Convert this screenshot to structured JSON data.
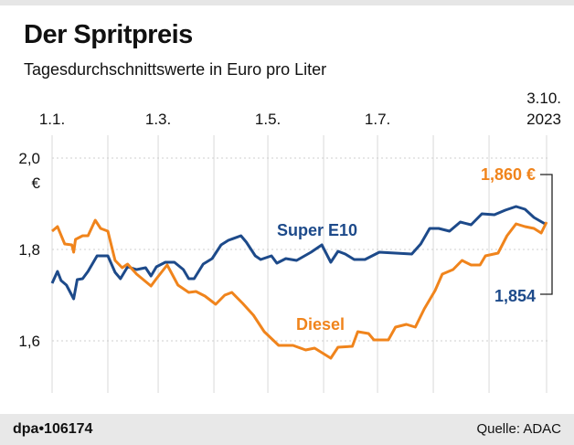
{
  "header": {
    "title": "Der Spritpreis",
    "subtitle": "Tagesdurchschnittswerte in Euro pro Liter"
  },
  "footer": {
    "credit": "dpa•106174",
    "source": "Quelle: ADAC"
  },
  "chart_data": {
    "type": "line",
    "title": "Der Spritpreis",
    "subtitle": "Tagesdurchschnittswerte in Euro pro Liter",
    "xlim": [
      "2023-01-01",
      "2023-10-03"
    ],
    "ylim": [
      1.49,
      2.05
    ],
    "x_ticks": [
      {
        "date": "2023-01-01",
        "label": "1.1."
      },
      {
        "date": "2023-03-01",
        "label": "1.3."
      },
      {
        "date": "2023-05-01",
        "label": "1.5."
      },
      {
        "date": "2023-07-01",
        "label": "1.7."
      },
      {
        "date": "2023-10-03",
        "label": "3.10.",
        "label2": "2023"
      }
    ],
    "x_gridlines": [
      "2023-01-01",
      "2023-02-01",
      "2023-03-01",
      "2023-04-01",
      "2023-05-01",
      "2023-06-01",
      "2023-07-01",
      "2023-08-01",
      "2023-09-01",
      "2023-10-03"
    ],
    "y_ticks": [
      {
        "value": 2.0,
        "label": "2,0"
      },
      {
        "value": 1.8,
        "label": "1,8"
      },
      {
        "value": 1.6,
        "label": "1,6"
      }
    ],
    "y_unit": "€",
    "grid": true,
    "series": [
      {
        "name": "Super E10",
        "color": "#1d4a8a",
        "end_label": "1,854",
        "points": [
          [
            "2023-01-01",
            1.726
          ],
          [
            "2023-01-04",
            1.752
          ],
          [
            "2023-01-06",
            1.732
          ],
          [
            "2023-01-09",
            1.722
          ],
          [
            "2023-01-13",
            1.692
          ],
          [
            "2023-01-15",
            1.734
          ],
          [
            "2023-01-18",
            1.736
          ],
          [
            "2023-01-21",
            1.752
          ],
          [
            "2023-01-26",
            1.786
          ],
          [
            "2023-02-01",
            1.786
          ],
          [
            "2023-02-05",
            1.75
          ],
          [
            "2023-02-08",
            1.736
          ],
          [
            "2023-02-12",
            1.762
          ],
          [
            "2023-02-17",
            1.756
          ],
          [
            "2023-02-22",
            1.76
          ],
          [
            "2023-02-25",
            1.742
          ],
          [
            "2023-02-28",
            1.762
          ],
          [
            "2023-03-05",
            1.772
          ],
          [
            "2023-03-10",
            1.772
          ],
          [
            "2023-03-15",
            1.756
          ],
          [
            "2023-03-18",
            1.736
          ],
          [
            "2023-03-21",
            1.736
          ],
          [
            "2023-03-26",
            1.768
          ],
          [
            "2023-03-31",
            1.78
          ],
          [
            "2023-04-05",
            1.81
          ],
          [
            "2023-04-09",
            1.82
          ],
          [
            "2023-04-16",
            1.83
          ],
          [
            "2023-04-19",
            1.816
          ],
          [
            "2023-04-24",
            1.786
          ],
          [
            "2023-04-27",
            1.778
          ],
          [
            "2023-05-03",
            1.786
          ],
          [
            "2023-05-06",
            1.77
          ],
          [
            "2023-05-11",
            1.78
          ],
          [
            "2023-05-17",
            1.776
          ],
          [
            "2023-05-25",
            1.794
          ],
          [
            "2023-05-31",
            1.81
          ],
          [
            "2023-06-05",
            1.772
          ],
          [
            "2023-06-09",
            1.796
          ],
          [
            "2023-06-13",
            1.79
          ],
          [
            "2023-06-18",
            1.778
          ],
          [
            "2023-06-24",
            1.778
          ],
          [
            "2023-07-02",
            1.794
          ],
          [
            "2023-07-20",
            1.79
          ],
          [
            "2023-07-25",
            1.812
          ],
          [
            "2023-07-30",
            1.846
          ],
          [
            "2023-08-04",
            1.846
          ],
          [
            "2023-08-10",
            1.84
          ],
          [
            "2023-08-16",
            1.86
          ],
          [
            "2023-08-22",
            1.854
          ],
          [
            "2023-08-28",
            1.878
          ],
          [
            "2023-09-04",
            1.876
          ],
          [
            "2023-09-10",
            1.886
          ],
          [
            "2023-09-16",
            1.894
          ],
          [
            "2023-09-21",
            1.888
          ],
          [
            "2023-09-26",
            1.87
          ],
          [
            "2023-10-03",
            1.854
          ]
        ]
      },
      {
        "name": "Diesel",
        "color": "#f0841c",
        "end_label": "1,860 €",
        "points": [
          [
            "2023-01-01",
            1.84
          ],
          [
            "2023-01-04",
            1.85
          ],
          [
            "2023-01-08",
            1.812
          ],
          [
            "2023-01-12",
            1.81
          ],
          [
            "2023-01-13",
            1.794
          ],
          [
            "2023-01-14",
            1.822
          ],
          [
            "2023-01-18",
            1.83
          ],
          [
            "2023-01-21",
            1.83
          ],
          [
            "2023-01-25",
            1.864
          ],
          [
            "2023-01-28",
            1.846
          ],
          [
            "2023-02-01",
            1.84
          ],
          [
            "2023-02-05",
            1.776
          ],
          [
            "2023-02-09",
            1.76
          ],
          [
            "2023-02-12",
            1.768
          ],
          [
            "2023-02-17",
            1.746
          ],
          [
            "2023-02-25",
            1.72
          ],
          [
            "2023-02-28",
            1.736
          ],
          [
            "2023-03-06",
            1.766
          ],
          [
            "2023-03-12",
            1.722
          ],
          [
            "2023-03-18",
            1.706
          ],
          [
            "2023-03-22",
            1.708
          ],
          [
            "2023-03-27",
            1.698
          ],
          [
            "2023-04-02",
            1.68
          ],
          [
            "2023-04-07",
            1.7
          ],
          [
            "2023-04-11",
            1.706
          ],
          [
            "2023-04-17",
            1.682
          ],
          [
            "2023-04-23",
            1.656
          ],
          [
            "2023-04-29",
            1.62
          ],
          [
            "2023-05-07",
            1.59
          ],
          [
            "2023-05-15",
            1.59
          ],
          [
            "2023-05-22",
            1.58
          ],
          [
            "2023-05-27",
            1.584
          ],
          [
            "2023-06-05",
            1.562
          ],
          [
            "2023-06-09",
            1.586
          ],
          [
            "2023-06-17",
            1.588
          ],
          [
            "2023-06-20",
            1.62
          ],
          [
            "2023-06-26",
            1.616
          ],
          [
            "2023-06-29",
            1.602
          ],
          [
            "2023-07-07",
            1.602
          ],
          [
            "2023-07-11",
            1.63
          ],
          [
            "2023-07-17",
            1.636
          ],
          [
            "2023-07-22",
            1.63
          ],
          [
            "2023-07-27",
            1.67
          ],
          [
            "2023-08-02",
            1.71
          ],
          [
            "2023-08-06",
            1.746
          ],
          [
            "2023-08-12",
            1.756
          ],
          [
            "2023-08-17",
            1.776
          ],
          [
            "2023-08-22",
            1.766
          ],
          [
            "2023-08-27",
            1.766
          ],
          [
            "2023-08-30",
            1.786
          ],
          [
            "2023-09-06",
            1.792
          ],
          [
            "2023-09-11",
            1.83
          ],
          [
            "2023-09-16",
            1.856
          ],
          [
            "2023-09-21",
            1.85
          ],
          [
            "2023-09-26",
            1.846
          ],
          [
            "2023-09-30",
            1.836
          ],
          [
            "2023-10-03",
            1.86
          ]
        ]
      }
    ]
  }
}
